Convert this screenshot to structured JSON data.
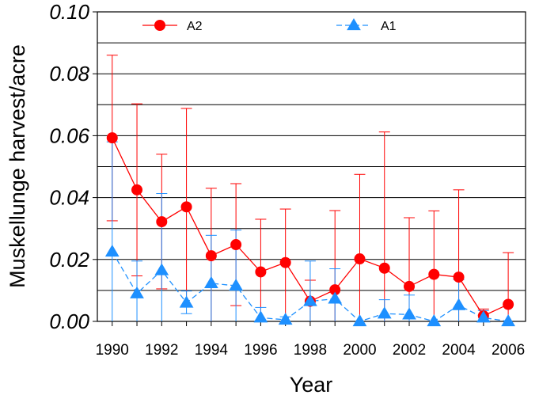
{
  "colors": {
    "A2": "#ff0000",
    "A1": "#1e90ff",
    "frame": "#000000"
  },
  "chart_data": {
    "type": "line",
    "title": "",
    "xlabel": "Year",
    "ylabel": "Muskellunge harvest/acre",
    "x": [
      1990,
      1991,
      1992,
      1993,
      1994,
      1995,
      1996,
      1997,
      1998,
      1999,
      2000,
      2001,
      2002,
      2003,
      2004,
      2005,
      2006
    ],
    "xticks": [
      "1990",
      "1992",
      "1994",
      "1996",
      "1998",
      "2000",
      "2002",
      "2004",
      "2006"
    ],
    "yticks": [
      "0.00",
      "0.02",
      "0.04",
      "0.06",
      "0.08",
      "0.10"
    ],
    "ylim": [
      0,
      0.1
    ],
    "xlim": [
      1989.4,
      2006.7
    ],
    "grid": "horizontal",
    "legend_position": "top",
    "series": [
      {
        "name": "A2",
        "marker": "circle",
        "line_style": "solid",
        "values": [
          0.0593,
          0.0425,
          0.0322,
          0.037,
          0.0212,
          0.0248,
          0.016,
          0.019,
          0.0065,
          0.0102,
          0.0202,
          0.0172,
          0.0113,
          0.0152,
          0.0143,
          0.0018,
          0.0055
        ],
        "upper": [
          0.086,
          0.0703,
          0.054,
          0.0688,
          0.043,
          0.0445,
          0.033,
          0.0363,
          0.0133,
          0.0358,
          0.0475,
          0.0612,
          0.0335,
          0.0357,
          0.0425,
          0.004,
          0.0222
        ],
        "lower": [
          0.0325,
          0.0147,
          0.0105,
          0.0052,
          0.0,
          0.0051,
          0.0,
          0.0,
          0.0,
          0.0,
          0.0,
          0.0,
          0.0,
          0.0,
          0.0,
          0.0,
          0.0
        ]
      },
      {
        "name": "A1",
        "marker": "triangle",
        "line_style": "dashed",
        "values": [
          0.0225,
          0.009,
          0.0165,
          0.006,
          0.0123,
          0.0115,
          0.0012,
          0.0005,
          0.0065,
          0.0073,
          0.0,
          0.0025,
          0.0022,
          0.0,
          0.0052,
          0.0012,
          0.0
        ],
        "upper": [
          0.058,
          0.0195,
          0.0413,
          0.0098,
          0.0278,
          0.0295,
          0.0045,
          0.0015,
          0.0195,
          0.017,
          0.0,
          0.007,
          0.0085,
          0.0,
          0.0135,
          0.0035,
          0.0
        ],
        "lower": [
          0.0,
          0.0,
          0.0,
          0.0025,
          0.0,
          0.0,
          0.0,
          0.0,
          0.0,
          0.0,
          0.0,
          0.0,
          0.0,
          0.0,
          0.0,
          0.0,
          0.0
        ]
      }
    ]
  }
}
